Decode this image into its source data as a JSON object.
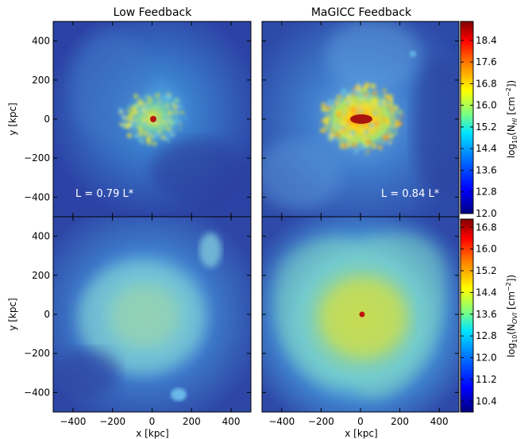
{
  "chart_data": {
    "type": "heatmap",
    "columns": [
      "Low Feedback",
      "MaGICC Feedback"
    ],
    "xlabel": "x [kpc]",
    "ylabel": "y [kpc]",
    "xlim": [
      -500,
      500
    ],
    "ylim": [
      -500,
      500
    ],
    "xticks": [
      -400,
      -200,
      0,
      200,
      400
    ],
    "yticks": [
      -400,
      -200,
      0,
      200,
      400
    ],
    "xticklabels": [
      "−400",
      "−200",
      "0",
      "200",
      "400"
    ],
    "yticklabels": [
      "−400",
      "−200",
      "0",
      "200",
      "400"
    ],
    "annotations": [
      {
        "panel": "top-left",
        "text": "L = 0.79 L*"
      },
      {
        "panel": "top-right",
        "text": "L = 0.84 L*"
      }
    ],
    "colorbars": [
      {
        "label_main": "log",
        "label_sub": "10",
        "label_rest": "(N",
        "label_species": "HI",
        "label_units": " [cm",
        "label_exp": "−2",
        "label_end": "])",
        "range": [
          12.0,
          19.1
        ],
        "ticks": [
          12.0,
          12.8,
          13.6,
          14.4,
          15.2,
          16.0,
          16.8,
          17.6,
          18.4
        ],
        "ticklabels": [
          "12.0",
          "12.8",
          "13.6",
          "14.4",
          "15.2",
          "16.0",
          "16.8",
          "17.6",
          "18.4"
        ]
      },
      {
        "label_main": "log",
        "label_sub": "10",
        "label_rest": "(N",
        "label_species": "OVI",
        "label_units": " [cm",
        "label_exp": "−2",
        "label_end": "])",
        "range": [
          10.0,
          17.1
        ],
        "ticks": [
          10.4,
          11.2,
          12.0,
          12.8,
          13.6,
          14.4,
          15.2,
          16.0,
          16.8
        ],
        "ticklabels": [
          "10.4",
          "11.2",
          "12.0",
          "12.8",
          "13.6",
          "14.4",
          "15.2",
          "16.0",
          "16.8"
        ]
      }
    ],
    "colormap": [
      "#00007f",
      "#0000ff",
      "#007fff",
      "#00ffff",
      "#7fff7f",
      "#ffff00",
      "#ff7f00",
      "#ff0000",
      "#7f0000"
    ],
    "panel_colors": {
      "background": "#2f3f9f",
      "halo_low": "#4a7fd0",
      "halo_mid": "#6ab6e6",
      "center": "#d7df2a",
      "core": "#b81b10"
    }
  }
}
